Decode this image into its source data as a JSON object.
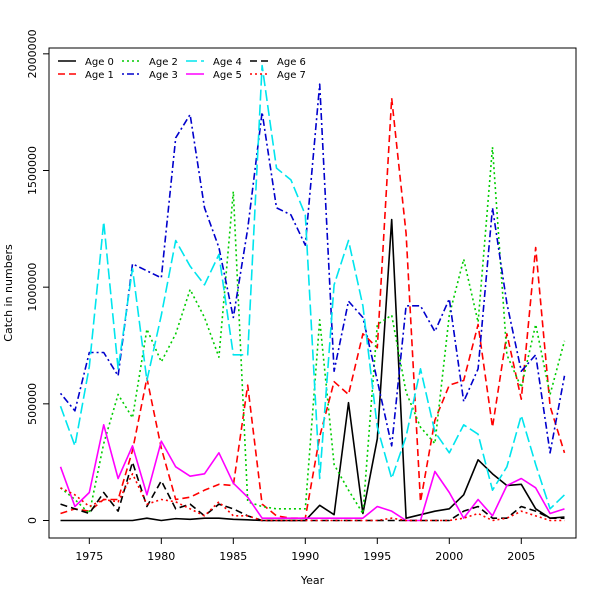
{
  "chart_data": {
    "type": "line",
    "title": "",
    "xlabel": "Year",
    "ylabel": "Catch in numbers",
    "xlim": [
      1972.2,
      2008.8
    ],
    "ylim": [
      -75000,
      2025000
    ],
    "xticks": [
      1975,
      1980,
      1985,
      1990,
      1995,
      2000,
      2005
    ],
    "yticks": [
      0,
      500000,
      1000000,
      1500000,
      2000000
    ],
    "legend_position": "top-left",
    "grid": false,
    "x": [
      1973,
      1974,
      1975,
      1976,
      1977,
      1978,
      1979,
      1980,
      1981,
      1982,
      1983,
      1984,
      1985,
      1986,
      1987,
      1988,
      1989,
      1990,
      1991,
      1992,
      1993,
      1994,
      1995,
      1996,
      1997,
      1998,
      1999,
      2000,
      2001,
      2002,
      2003,
      2004,
      2005,
      2006,
      2007,
      2008
    ],
    "series": [
      {
        "name": "Age 0",
        "color": "#000000",
        "dash": "solid",
        "values": [
          0,
          0,
          0,
          0,
          0,
          0,
          10000,
          0,
          8000,
          5000,
          10000,
          10000,
          5000,
          3000,
          0,
          0,
          0,
          0,
          65000,
          25000,
          505000,
          30000,
          350000,
          1290000,
          10000,
          25000,
          40000,
          50000,
          110000,
          260000,
          200000,
          150000,
          155000,
          50000,
          10000,
          15000
        ]
      },
      {
        "name": "Age 1",
        "color": "#ff0000",
        "dash": "dashed",
        "values": [
          30000,
          50000,
          40000,
          90000,
          90000,
          300000,
          610000,
          310000,
          90000,
          100000,
          130000,
          155000,
          150000,
          580000,
          70000,
          20000,
          10000,
          10000,
          360000,
          595000,
          540000,
          800000,
          740000,
          1810000,
          1230000,
          80000,
          430000,
          580000,
          600000,
          840000,
          400000,
          800000,
          520000,
          1170000,
          490000,
          290000
        ]
      },
      {
        "name": "Age 2",
        "color": "#00cc00",
        "dash": "dotted",
        "values": [
          140000,
          90000,
          30000,
          330000,
          540000,
          440000,
          820000,
          680000,
          800000,
          990000,
          870000,
          700000,
          1410000,
          80000,
          60000,
          50000,
          50000,
          50000,
          860000,
          240000,
          130000,
          30000,
          840000,
          880000,
          550000,
          400000,
          330000,
          880000,
          1120000,
          850000,
          1600000,
          710000,
          570000,
          840000,
          540000,
          770000
        ]
      },
      {
        "name": "Age 3",
        "color": "#0000cc",
        "dash": "dotdash",
        "values": [
          545000,
          470000,
          720000,
          720000,
          620000,
          1100000,
          1070000,
          1040000,
          1640000,
          1740000,
          1340000,
          1170000,
          870000,
          1250000,
          1750000,
          1340000,
          1310000,
          1180000,
          1870000,
          640000,
          940000,
          870000,
          600000,
          320000,
          920000,
          920000,
          810000,
          950000,
          510000,
          650000,
          1340000,
          930000,
          640000,
          710000,
          290000,
          620000
        ]
      },
      {
        "name": "Age 4",
        "color": "#00e5ee",
        "dash": "longdash",
        "values": [
          490000,
          320000,
          660000,
          1280000,
          650000,
          1080000,
          600000,
          880000,
          1200000,
          1090000,
          1010000,
          1140000,
          710000,
          710000,
          1950000,
          1510000,
          1460000,
          1310000,
          180000,
          1010000,
          1200000,
          920000,
          400000,
          180000,
          360000,
          650000,
          380000,
          290000,
          410000,
          370000,
          130000,
          230000,
          450000,
          240000,
          50000,
          110000
        ]
      },
      {
        "name": "Age 5",
        "color": "#ff00ff",
        "dash": "solid",
        "values": [
          230000,
          60000,
          120000,
          410000,
          180000,
          320000,
          110000,
          340000,
          230000,
          190000,
          200000,
          290000,
          160000,
          100000,
          10000,
          10000,
          10000,
          10000,
          10000,
          10000,
          10000,
          10000,
          60000,
          40000,
          0,
          0,
          210000,
          120000,
          10000,
          90000,
          20000,
          150000,
          180000,
          140000,
          30000,
          50000
        ]
      },
      {
        "name": "Age 6",
        "color": "#000000",
        "dash": "dashed",
        "values": [
          70000,
          50000,
          30000,
          120000,
          40000,
          250000,
          60000,
          170000,
          50000,
          70000,
          20000,
          70000,
          50000,
          20000,
          0,
          0,
          0,
          0,
          0,
          0,
          0,
          0,
          0,
          0,
          0,
          0,
          0,
          0,
          40000,
          60000,
          10000,
          10000,
          60000,
          40000,
          10000,
          10000
        ]
      },
      {
        "name": "Age 7",
        "color": "#ff0000",
        "dash": "dotted",
        "values": [
          140000,
          110000,
          60000,
          90000,
          80000,
          200000,
          70000,
          90000,
          80000,
          50000,
          20000,
          80000,
          20000,
          20000,
          0,
          0,
          0,
          0,
          0,
          0,
          0,
          0,
          0,
          10000,
          0,
          0,
          0,
          0,
          10000,
          30000,
          0,
          10000,
          40000,
          20000,
          0,
          0
        ]
      }
    ]
  }
}
